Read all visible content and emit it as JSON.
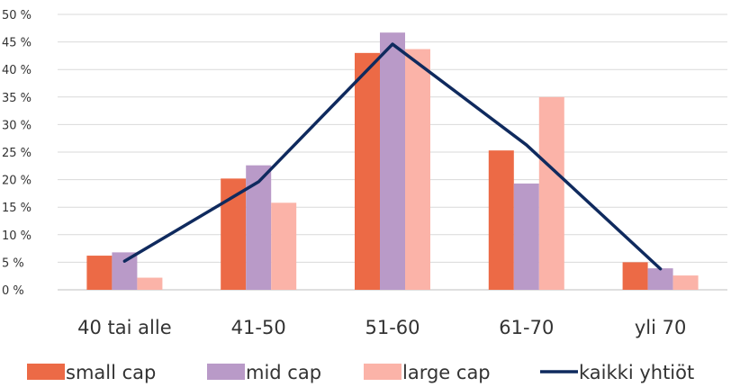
{
  "chart_data": {
    "type": "bar",
    "categories": [
      "40 tai alle",
      "41-50",
      "51-60",
      "61-70",
      "yli 70"
    ],
    "series": [
      {
        "name": "small cap",
        "type": "bar",
        "color": "#ec6a46",
        "values": [
          6.2,
          20.2,
          43.0,
          25.3,
          5.0
        ]
      },
      {
        "name": "mid cap",
        "type": "bar",
        "color": "#b99ac8",
        "values": [
          6.8,
          22.6,
          46.7,
          19.3,
          3.9
        ]
      },
      {
        "name": "large cap",
        "type": "bar",
        "color": "#fbb3a8",
        "values": [
          2.2,
          15.8,
          43.7,
          35.0,
          2.6
        ]
      },
      {
        "name": "kaikki yhtiöt",
        "type": "line",
        "color": "#0f2a5e",
        "values": [
          5.2,
          19.6,
          44.6,
          26.3,
          3.8
        ]
      }
    ],
    "yticks": [
      "0 %",
      "5 %",
      "10 %",
      "15 %",
      "20 %",
      "25 %",
      "30 %",
      "35 %",
      "40 %",
      "45 %",
      "50 %"
    ],
    "ylim": [
      0,
      50
    ],
    "xlabel": "",
    "ylabel": "",
    "grid": true,
    "legend": "bottom"
  }
}
